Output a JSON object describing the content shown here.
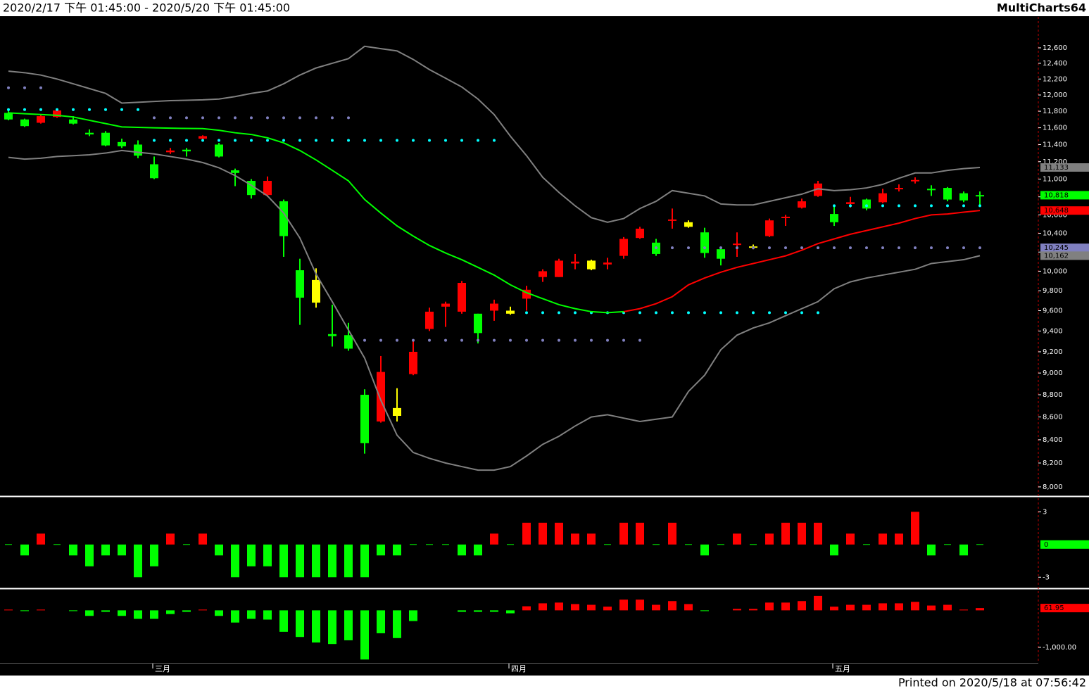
{
  "header": {
    "range": "2020/2/17 下午 01:45:00 - 2020/5/20 下午 01:45:00",
    "app": "MultiCharts64"
  },
  "footer": {
    "printed": "Printed on 2020/5/18 at 07:56:42"
  },
  "chart_data": [
    {
      "type": "candlestick",
      "log_scale": true,
      "categories": [
        null,
        null,
        null,
        null,
        null,
        null,
        null,
        null,
        null,
        "三月",
        null,
        null,
        null,
        null,
        null,
        null,
        null,
        null,
        null,
        null,
        null,
        null,
        null,
        null,
        null,
        null,
        null,
        null,
        null,
        null,
        null,
        "四月",
        null,
        null,
        null,
        null,
        null,
        null,
        null,
        null,
        null,
        null,
        null,
        null,
        null,
        null,
        null,
        null,
        null,
        null,
        null,
        "五月",
        null,
        null,
        null,
        null,
        null,
        null,
        null,
        null,
        null
      ],
      "open": [
        11780,
        11700,
        11660,
        11730,
        11700,
        11540,
        11540,
        11430,
        11400,
        11170,
        11310,
        11340,
        11470,
        11400,
        11100,
        10980,
        10820,
        10750,
        10010,
        9910,
        9370,
        9360,
        8800,
        8560,
        8680,
        8990,
        9420,
        9640,
        9590,
        9570,
        9600,
        9600,
        9720,
        9940,
        9940,
        10080,
        10110,
        10070,
        10160,
        10350,
        10300,
        10540,
        10520,
        10410,
        10230,
        10280,
        10260,
        10370,
        10570,
        10680,
        10810,
        10610,
        10720,
        10770,
        10740,
        10890,
        10980,
        10890,
        10900,
        10840,
        10820
      ],
      "high": [
        11810,
        11710,
        11760,
        11820,
        11740,
        11580,
        11560,
        11470,
        11450,
        11260,
        11360,
        11360,
        11510,
        11420,
        11120,
        11000,
        11030,
        10770,
        10130,
        10030,
        9660,
        9480,
        8850,
        9160,
        8860,
        9300,
        9630,
        9690,
        9900,
        9570,
        9710,
        9640,
        9850,
        10020,
        10130,
        10180,
        10120,
        10140,
        10360,
        10470,
        10340,
        10670,
        10540,
        10460,
        10250,
        10410,
        10280,
        10560,
        10600,
        10780,
        10980,
        10690,
        10800,
        10780,
        10890,
        10940,
        11020,
        10930,
        10910,
        10860,
        10860
      ],
      "low": [
        11690,
        11610,
        11650,
        11720,
        11640,
        11500,
        11380,
        11360,
        11240,
        11000,
        11290,
        11260,
        11460,
        11250,
        10920,
        10780,
        10800,
        10150,
        9460,
        9630,
        9250,
        9210,
        8280,
        8550,
        8560,
        8980,
        9400,
        9440,
        9570,
        9280,
        9500,
        9560,
        9600,
        9890,
        9940,
        10020,
        10010,
        10020,
        10130,
        10340,
        10160,
        10450,
        10460,
        10140,
        10060,
        10150,
        10230,
        10360,
        10480,
        10670,
        10800,
        10480,
        10680,
        10650,
        10730,
        10860,
        10950,
        10810,
        10750,
        10740,
        10690
      ],
      "close": [
        11700,
        11620,
        11740,
        11810,
        11650,
        11520,
        11390,
        11380,
        11270,
        11010,
        11330,
        11320,
        11500,
        11260,
        11070,
        10820,
        10980,
        10370,
        9730,
        9680,
        9350,
        9230,
        8370,
        9010,
        8610,
        9200,
        9590,
        9670,
        9880,
        9380,
        9670,
        9570,
        9810,
        10000,
        10110,
        10100,
        10020,
        10090,
        10340,
        10450,
        10180,
        10550,
        10470,
        10190,
        10130,
        10290,
        10250,
        10540,
        10580,
        10750,
        10950,
        10520,
        10740,
        10670,
        10840,
        10900,
        10990,
        10880,
        10770,
        10760,
        10818
      ],
      "colors": [
        "#00ff00",
        "#00ff00",
        "#ff0000",
        "#ff0000",
        "#00ff00",
        "#00ff00",
        "#00ff00",
        "#00ff00",
        "#00ff00",
        "#00ff00",
        "#ff0000",
        "#00ff00",
        "#ff0000",
        "#00ff00",
        "#00ff00",
        "#00ff00",
        "#ff0000",
        "#00ff00",
        "#00ff00",
        "#ffff00",
        "#00ff00",
        "#00ff00",
        "#00ff00",
        "#ff0000",
        "#ffff00",
        "#ff0000",
        "#ff0000",
        "#ff0000",
        "#ff0000",
        "#00ff00",
        "#ff0000",
        "#ffff00",
        "#ff0000",
        "#ff0000",
        "#ff0000",
        "#ff0000",
        "#ffff00",
        "#ff0000",
        "#ff0000",
        "#ff0000",
        "#00ff00",
        "#ff0000",
        "#ffff00",
        "#00ff00",
        "#00ff00",
        "#ff0000",
        "#ffff00",
        "#ff0000",
        "#ff0000",
        "#ff0000",
        "#ff0000",
        "#00ff00",
        "#ff0000",
        "#00ff00",
        "#ff0000",
        "#ff0000",
        "#ff0000",
        "#00ff00",
        "#00ff00",
        "#00ff00",
        "#00ff00"
      ],
      "series": [
        {
          "color": "#808080",
          "values": [
            12300,
            12280,
            12250,
            12200,
            12140,
            12080,
            12020,
            11900,
            11910,
            11920,
            11930,
            11935,
            11940,
            11950,
            11980,
            12020,
            12050,
            12140,
            12250,
            12340,
            12400,
            12460,
            12620,
            12590,
            12560,
            12450,
            12320,
            12210,
            12100,
            11950,
            11760,
            11500,
            11270,
            11020,
            10850,
            10700,
            10570,
            10520,
            10560,
            10670,
            10750,
            10870,
            10840,
            10810,
            10720,
            10710,
            10710,
            10750,
            10790,
            10830,
            10890,
            10870,
            10880,
            10900,
            10940,
            11010,
            11070,
            11070,
            11100,
            11120,
            11133
          ]
        },
        {
          "color": "#808080",
          "values": [
            11250,
            11230,
            11240,
            11260,
            11270,
            11280,
            11300,
            11330,
            11310,
            11290,
            11260,
            11230,
            11190,
            11130,
            11040,
            10930,
            10810,
            10620,
            10350,
            9970,
            9690,
            9410,
            9140,
            8750,
            8440,
            8290,
            8240,
            8200,
            8170,
            8140,
            8140,
            8170,
            8260,
            8360,
            8430,
            8520,
            8600,
            8620,
            8590,
            8560,
            8580,
            8600,
            8830,
            8980,
            9220,
            9360,
            9430,
            9480,
            9550,
            9620,
            9690,
            9820,
            9890,
            9930,
            9960,
            9990,
            10020,
            10080,
            10100,
            10120,
            10162
          ]
        },
        {
          "color": "#00ff00",
          "values": [
            11780,
            11770,
            11760,
            11750,
            11730,
            11690,
            11650,
            11610,
            11605,
            11600,
            11595,
            11592,
            11590,
            11570,
            11540,
            11520,
            11480,
            11420,
            11330,
            11220,
            11100,
            10980,
            10770,
            10620,
            10480,
            10370,
            10270,
            10190,
            10120,
            10040,
            9960,
            9860,
            9780,
            9720,
            9660,
            9620,
            9590,
            9580,
            9590,
            null,
            null,
            null,
            null,
            null,
            null,
            null,
            null,
            null,
            null,
            null,
            null,
            null,
            null,
            null,
            null,
            null,
            null,
            null,
            null,
            null,
            null
          ]
        },
        {
          "color": "#ff0000",
          "values": [
            null,
            null,
            null,
            null,
            null,
            null,
            null,
            null,
            null,
            null,
            null,
            null,
            null,
            null,
            null,
            null,
            null,
            null,
            null,
            null,
            null,
            null,
            null,
            null,
            null,
            null,
            null,
            null,
            null,
            null,
            null,
            null,
            null,
            null,
            null,
            null,
            null,
            null,
            9590,
            9620,
            9670,
            9740,
            9860,
            9930,
            9990,
            10040,
            10080,
            10120,
            10160,
            10220,
            10290,
            10340,
            10390,
            10430,
            10470,
            10510,
            10560,
            10600,
            10610,
            10630,
            10648
          ]
        }
      ],
      "levels": [
        {
          "value": 12090,
          "from": 0,
          "to": 2,
          "color": "#8080c0"
        },
        {
          "value": 11820,
          "from": 0,
          "to": 8,
          "color": "#00ffff"
        },
        {
          "value": 11720,
          "from": 9,
          "to": 21,
          "color": "#8080c0"
        },
        {
          "value": 11450,
          "from": 9,
          "to": 30,
          "color": "#00ffff"
        },
        {
          "value": 9310,
          "from": 22,
          "to": 39,
          "color": "#8080c0"
        },
        {
          "value": 9580,
          "from": 32,
          "to": 50,
          "color": "#00ffff"
        },
        {
          "value": 10245,
          "from": 40,
          "to": 60,
          "color": "#8080c0"
        },
        {
          "value": 10701,
          "from": 51,
          "to": 60,
          "color": "#00ffff"
        }
      ],
      "markers": [
        {
          "value": 11133,
          "label": "11,133",
          "color": "#808080"
        },
        {
          "value": 10818,
          "label": "10,818",
          "color": "#00ff00"
        },
        {
          "value": 10648,
          "label": "10,648",
          "color": "#ff0000"
        },
        {
          "value": 10245,
          "label": "10,245",
          "color": "#8080c0"
        },
        {
          "value": 10162,
          "label": "10,162",
          "color": "#808080"
        }
      ],
      "ylim": [
        7930,
        13010
      ],
      "yticks": [
        {
          "value": 8000,
          "label": "8,000"
        },
        {
          "value": 8200,
          "label": "8,200"
        },
        {
          "value": 8400,
          "label": "8,400"
        },
        {
          "value": 8600,
          "label": "8,600"
        },
        {
          "value": 8800,
          "label": "8,800"
        },
        {
          "value": 9000,
          "label": "9,000"
        },
        {
          "value": 9200,
          "label": "9,200"
        },
        {
          "value": 9400,
          "label": "9,400"
        },
        {
          "value": 9600,
          "label": "9,600"
        },
        {
          "value": 9800,
          "label": "9,800"
        },
        {
          "value": 10000,
          "label": "10,000"
        },
        {
          "value": 10200,
          "label": "10,200"
        },
        {
          "value": 10400,
          "label": "10,400"
        },
        {
          "value": 10600,
          "label": "10,600"
        },
        {
          "value": 10800,
          "label": "10,800"
        },
        {
          "value": 11000,
          "label": "11,000"
        },
        {
          "value": 11200,
          "label": "11,200"
        },
        {
          "value": 11400,
          "label": "11,400"
        },
        {
          "value": 11600,
          "label": "11,600"
        },
        {
          "value": 11800,
          "label": "11,800"
        },
        {
          "value": 12000,
          "label": "12,000"
        },
        {
          "value": 12200,
          "label": "12,200"
        },
        {
          "value": 12400,
          "label": "12,400"
        },
        {
          "value": 12600,
          "label": "12,600"
        }
      ]
    },
    {
      "type": "bar",
      "up_color": "#ff0000",
      "down_color": "#00ff00",
      "values": [
        0,
        -1,
        1,
        0,
        -1,
        -2,
        -1,
        -1,
        -3,
        -2,
        1,
        0,
        1,
        -1,
        -3,
        -2,
        -2,
        -3,
        -3,
        -3,
        -3,
        -3,
        -3,
        -1,
        -1,
        0,
        0,
        0,
        -1,
        -1,
        1,
        0,
        2,
        2,
        2,
        1,
        1,
        0,
        2,
        2,
        0,
        2,
        0,
        -1,
        0,
        1,
        0,
        1,
        2,
        2,
        2,
        -1,
        1,
        0,
        1,
        1,
        3,
        -1,
        0,
        -1,
        0
      ],
      "markers": [
        {
          "value": 0,
          "color": "#00ff00"
        }
      ],
      "ylim": [
        -3.95,
        4.25
      ],
      "yticks": [
        3,
        -3
      ]
    },
    {
      "type": "bar",
      "up_color": "#ff0000",
      "down_color": "#00ff00",
      "values": [
        20,
        -20,
        20,
        null,
        -20,
        -150,
        -40,
        -150,
        -230,
        -230,
        -100,
        -40,
        20,
        -150,
        -330,
        -230,
        -250,
        -580,
        -720,
        -870,
        -910,
        -810,
        -1330,
        -620,
        -750,
        -290,
        null,
        null,
        -40,
        -40,
        -40,
        -80,
        110,
        190,
        210,
        170,
        150,
        100,
        290,
        290,
        150,
        250,
        170,
        -20,
        null,
        40,
        40,
        210,
        210,
        250,
        390,
        100,
        150,
        150,
        190,
        190,
        230,
        130,
        150,
        20,
        61.95
      ],
      "markers": [
        {
          "value": 61.95,
          "color": "#ff0000"
        }
      ],
      "ylim": [
        -1420,
        540
      ],
      "yticks": [
        {
          "value": -1000,
          "label": "-1,000.00"
        }
      ]
    }
  ]
}
